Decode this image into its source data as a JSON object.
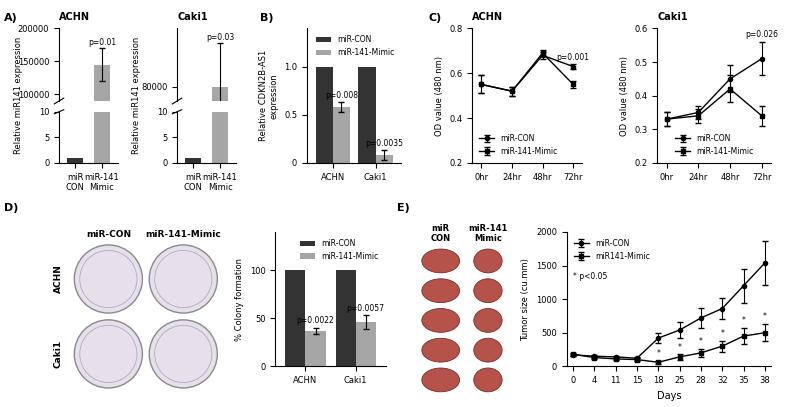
{
  "panel_labels": [
    "A)",
    "B)",
    "C)",
    "D)",
    "E)"
  ],
  "images": [
    {
      "column_labels": [
        "miR-CON",
        "miR-141-Mimic"
      ],
      "row_labels": [
        "ACHN",
        "Caki1"
      ]
    },
    {
      "column_labels": [
        "miR\nCON",
        "miR-141\nMimic"
      ]
    }
  ],
  "chart_data": [
    {
      "type": "bar",
      "title": "ACHN",
      "ylabel": "Relative miR141 expression",
      "categories": [
        "miR\nCON",
        "miR-141\nMimic"
      ],
      "values": [
        1,
        145000
      ],
      "errors": [
        null,
        25000
      ],
      "colors": [
        "#333333",
        "#a6a6a6"
      ],
      "ylim": [
        [
          0,
          10
        ],
        [
          90000,
          200000
        ]
      ],
      "yticks": [
        [
          0,
          5,
          10
        ],
        [
          100000,
          150000,
          200000
        ]
      ],
      "annotations": [
        {
          "x": "miR-141\nMimic",
          "text": "p=0.01"
        }
      ]
    },
    {
      "type": "bar",
      "title": "Caki1",
      "ylabel": "Relative miR141 expression",
      "categories": [
        "miR\nCON",
        "miR-141\nMimic"
      ],
      "values": [
        1,
        80000
      ],
      "errors": [
        null,
        15000
      ],
      "colors": [
        "#333333",
        "#a6a6a6"
      ],
      "ylim": [
        [
          0,
          10
        ],
        [
          75000,
          100000
        ]
      ],
      "yticks": [
        [
          0,
          5,
          10
        ],
        [
          80000
        ]
      ],
      "annotations": [
        {
          "x": "miR-141\nMimic",
          "text": "p=0.03"
        }
      ]
    },
    {
      "type": "bar",
      "ylabel": "Relative CDKN2B-AS1\nexpression",
      "categories": [
        "ACHN",
        "Caki1"
      ],
      "series": [
        {
          "name": "miR-CON",
          "color": "#333333",
          "values": [
            1,
            1
          ],
          "errors": [
            null,
            null
          ]
        },
        {
          "name": "miR-141-Mimic",
          "color": "#a6a6a6",
          "values": [
            0.58,
            0.08
          ],
          "errors": [
            0.05,
            0.05
          ]
        }
      ],
      "ylim": [
        0,
        1.4
      ],
      "yticks": [
        0,
        0.5,
        {
          "value": 1,
          "label": "1.0"
        }
      ],
      "legend": "upper right",
      "annotations": [
        {
          "x": "ACHN",
          "series": "miR-141-Mimic",
          "text": "p=0.008"
        },
        {
          "x": "Caki1",
          "series": "miR-141-Mimic",
          "text": "p=0.0035"
        }
      ]
    },
    {
      "type": "line",
      "title": "ACHN",
      "ylabel": "OD value (480 nm)",
      "categories": [
        "0hr",
        "24hr",
        "48hr",
        "72hr"
      ],
      "series": [
        {
          "name": "miR-CON",
          "color": "#000000",
          "marker": "circle",
          "values": [
            0.55,
            0.52,
            0.68,
            0.63
          ],
          "errors": [
            0.04,
            0.02,
            0.015,
            0.01
          ]
        },
        {
          "name": "miR-141-Mimic",
          "color": "#000000",
          "marker": "square",
          "values": [
            0.55,
            0.52,
            0.69,
            0.55
          ],
          "errors": [
            0.04,
            0.02,
            0.015,
            0.015
          ]
        }
      ],
      "ylim": [
        0.2,
        0.8
      ],
      "yticks": [
        0.2,
        0.4,
        0.6,
        0.8
      ],
      "legend": "lower left",
      "annotations": [
        {
          "x": "72hr",
          "text": "p=0.001"
        }
      ]
    },
    {
      "type": "line",
      "title": "Caki1",
      "ylabel": "OD value (480 nm)",
      "categories": [
        "0hr",
        "24hr",
        "48hr",
        "72hr"
      ],
      "series": [
        {
          "name": "miR-CON",
          "color": "#000000",
          "marker": "circle",
          "values": [
            0.33,
            0.35,
            0.45,
            0.51
          ],
          "errors": [
            0.02,
            0.02,
            0.04,
            0.05
          ]
        },
        {
          "name": "miR-141-Mimic",
          "color": "#000000",
          "marker": "square",
          "values": [
            0.33,
            0.34,
            0.42,
            0.34
          ],
          "errors": [
            0.02,
            0.02,
            0.04,
            0.03
          ]
        }
      ],
      "ylim": [
        0.2,
        0.6
      ],
      "yticks": [
        0.2,
        0.3,
        0.4,
        0.5,
        0.6
      ],
      "legend": "lower center",
      "annotations": [
        {
          "x": "72hr",
          "text": "p=0.026"
        }
      ]
    },
    {
      "type": "bar",
      "ylabel": "% Colony formation",
      "categories": [
        "ACHN",
        "Caki1"
      ],
      "series": [
        {
          "name": "miR-CON",
          "color": "#333333",
          "values": [
            100,
            100
          ],
          "errors": [
            null,
            null
          ]
        },
        {
          "name": "miR-141-Mimic",
          "color": "#a6a6a6",
          "values": [
            37,
            46
          ],
          "errors": [
            3,
            7
          ]
        }
      ],
      "ylim": [
        0,
        140
      ],
      "yticks": [
        0,
        50,
        100
      ],
      "legend": "upper right",
      "annotations": [
        {
          "x": "ACHN",
          "series": "miR-141-Mimic",
          "text": "p=0.0022"
        },
        {
          "x": "Caki1",
          "series": "miR-141-Mimic",
          "text": "p=0.0057"
        }
      ]
    },
    {
      "type": "line",
      "xlabel": "Days",
      "ylabel": "Tumor size (cu.mm)",
      "categories": [
        "0",
        "4",
        "11",
        "15",
        "18",
        "25",
        "28",
        "32",
        "35",
        "38"
      ],
      "series": [
        {
          "name": "miR-CON",
          "color": "#000000",
          "marker": "circle",
          "values": [
            170,
            150,
            140,
            120,
            420,
            540,
            720,
            860,
            1200,
            1540
          ],
          "errors": [
            20,
            20,
            20,
            20,
            80,
            120,
            150,
            150,
            250,
            330
          ]
        },
        {
          "name": "miR141-Mimic",
          "color": "#000000",
          "marker": "square",
          "values": [
            180,
            130,
            110,
            100,
            60,
            140,
            200,
            300,
            450,
            500
          ],
          "errors": [
            20,
            20,
            20,
            20,
            20,
            40,
            60,
            80,
            120,
            130
          ]
        }
      ],
      "ylim": [
        0,
        2000
      ],
      "yticks": [
        0,
        500,
        1000,
        1500,
        2000
      ],
      "legend": "upper left",
      "annotations": [
        {
          "x": "18",
          "series": "miR141-Mimic",
          "text": "*"
        },
        {
          "x": "25",
          "series": "miR141-Mimic",
          "text": "*"
        },
        {
          "x": "28",
          "series": "miR141-Mimic",
          "text": "*"
        },
        {
          "x": "32",
          "series": "miR141-Mimic",
          "text": "*"
        },
        {
          "x": "35",
          "series": "miR141-Mimic",
          "text": "*"
        },
        {
          "x": "38",
          "series": "miR141-Mimic",
          "text": "*"
        },
        {
          "text": "* p<0.05"
        }
      ]
    }
  ]
}
